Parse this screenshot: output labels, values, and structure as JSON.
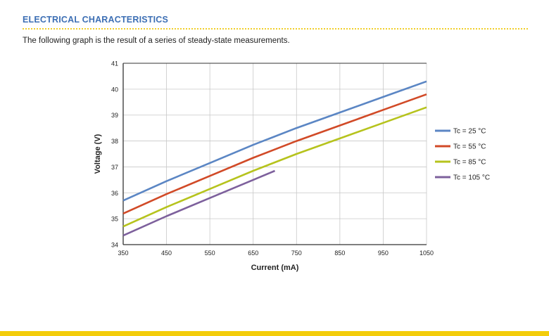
{
  "header": {
    "section_title": "ELECTRICAL CHARACTERISTICS",
    "intro_text": "The following graph is the result of a series of steady-state measurements."
  },
  "colors": {
    "title": "#3d6fb4",
    "rule": "#f1cf2a",
    "footer_bar": "#f3cd0b"
  },
  "chart_data": {
    "type": "line",
    "title": "",
    "xlabel": "Current (mA)",
    "ylabel": "Voltage (V)",
    "xlim": [
      350,
      1050
    ],
    "ylim": [
      34,
      41
    ],
    "xticks": [
      "350",
      "450",
      "550",
      "650",
      "750",
      "850",
      "950",
      "1050"
    ],
    "yticks": [
      "34",
      "35",
      "36",
      "37",
      "38",
      "39",
      "40",
      "41"
    ],
    "grid": true,
    "legend_position": "right",
    "series": [
      {
        "name": "Tc = 25 °C",
        "color": "#5b86c4",
        "x": [
          350,
          450,
          550,
          650,
          750,
          850,
          950,
          1050
        ],
        "y": [
          35.7,
          36.45,
          37.15,
          37.85,
          38.5,
          39.1,
          39.7,
          40.3
        ]
      },
      {
        "name": "Tc = 55 °C",
        "color": "#d14a27",
        "x": [
          350,
          450,
          550,
          650,
          750,
          850,
          950,
          1050
        ],
        "y": [
          35.2,
          35.95,
          36.65,
          37.35,
          38.0,
          38.6,
          39.2,
          39.8
        ]
      },
      {
        "name": "Tc = 85 °C",
        "color": "#b6c31d",
        "x": [
          350,
          450,
          550,
          650,
          750,
          850,
          950,
          1050
        ],
        "y": [
          34.7,
          35.45,
          36.15,
          36.85,
          37.5,
          38.1,
          38.7,
          39.3
        ]
      },
      {
        "name": "Tc = 105 °C",
        "color": "#7d609c",
        "x": [
          350,
          450,
          550,
          650,
          700
        ],
        "y": [
          34.35,
          35.1,
          35.8,
          36.5,
          36.85
        ]
      }
    ]
  }
}
